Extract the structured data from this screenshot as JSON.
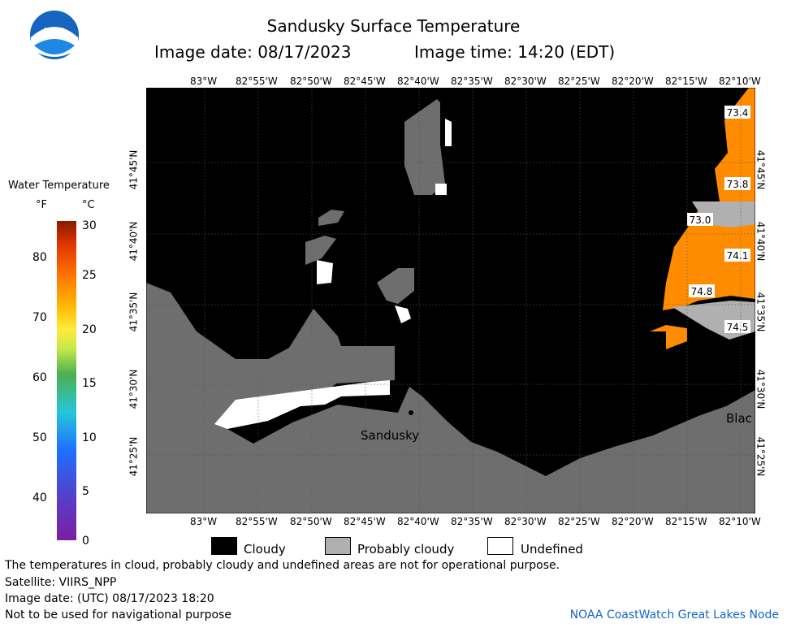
{
  "header": {
    "title": "Sandusky Surface Temperature",
    "image_date": "Image date: 08/17/2023",
    "image_time": "Image time: 14:20 (EDT)"
  },
  "logo": {
    "text": "NOAA"
  },
  "scale": {
    "title": "Water Temperature",
    "unit_f": "°F",
    "unit_c": "°C",
    "f_ticks": [
      "80",
      "70",
      "60",
      "50",
      "40"
    ],
    "c_ticks": [
      "30",
      "25",
      "20",
      "15",
      "10",
      "5",
      "0"
    ]
  },
  "map": {
    "lon_labels": [
      "83°W",
      "82°55'W",
      "82°50'W",
      "82°45'W",
      "82°40'W",
      "82°35'W",
      "82°30'W",
      "82°25'W",
      "82°20'W",
      "82°15'W",
      "82°10'W"
    ],
    "lat_labels": [
      "41°45'N",
      "41°40'N",
      "41°35'N",
      "41°30'N",
      "41°25'N"
    ],
    "place_labels": [
      "Sandusky",
      "Blac"
    ],
    "temperatures": [
      "73.4",
      "73.8",
      "73.0",
      "74.1",
      "74.8",
      "74.5"
    ]
  },
  "legend": {
    "cloudy": "Cloudy",
    "probably_cloudy": "Probably cloudy",
    "undefined": "Undefined"
  },
  "footer": {
    "disclaimer": "The temperatures in cloud, probably cloudy and undefined areas are not for operational purpose.",
    "satellite": "Satellite: VIIRS_NPP",
    "utc_date": "Image date: (UTC) 08/17/2023  18:20",
    "nav": "Not to be used for navigational purpose",
    "credit": "NOAA CoastWatch Great Lakes Node"
  }
}
